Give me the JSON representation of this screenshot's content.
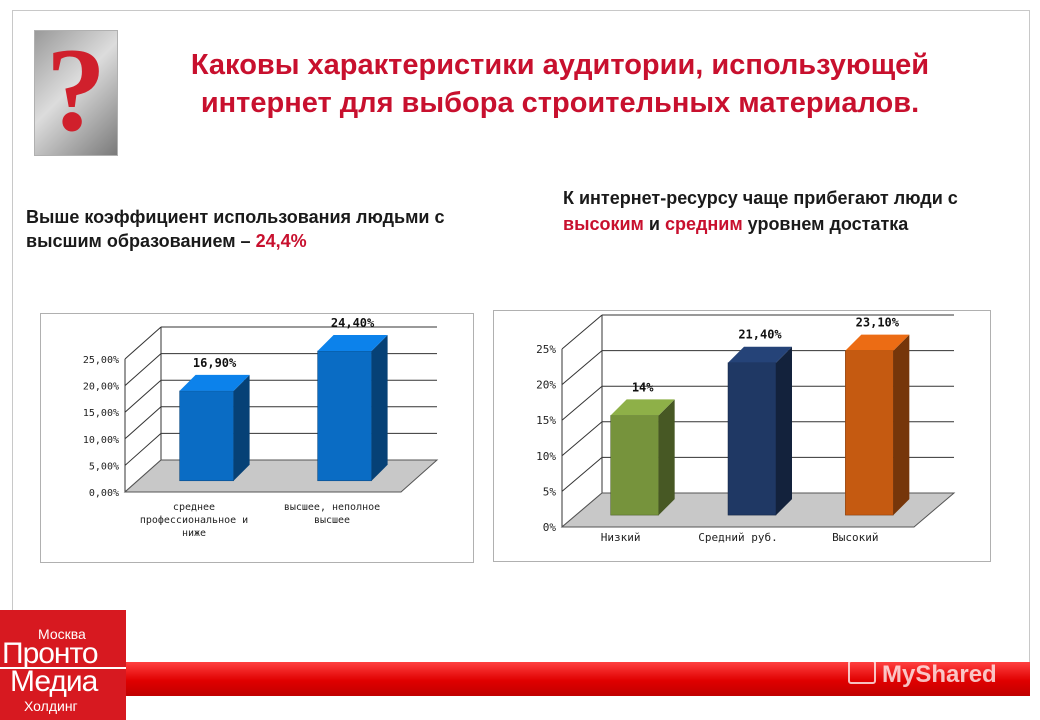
{
  "title": "Каковы характеристики аудитории, использующей интернет для выбора строительных материалов.",
  "left_text": {
    "main": "Выше коэффициент использования людьми с высшим образованием –",
    "highlight": "24,4%"
  },
  "right_text": {
    "part1": "К интернет-ресурсу чаще прибегают люди с",
    "high": "высоким",
    "and": "и",
    "mid": "средним",
    "part2": "уровнем достатка"
  },
  "logo": {
    "line1": "Москва",
    "line2": "Пронто",
    "line3": "Медиа",
    "line4": "Холдинг"
  },
  "watermark": "MyShared",
  "colors": {
    "title_red": "#c8102e",
    "logo_red": "#d71920"
  },
  "chart_data": [
    {
      "type": "bar",
      "categories": [
        "среднее профессиональное и ниже",
        "высшее, неполное высшее"
      ],
      "values": [
        16.9,
        24.4
      ],
      "data_labels": [
        "16,90%",
        "24,40%"
      ],
      "ylim": [
        0,
        25
      ],
      "ytick_labels": [
        "0,00%",
        "5,00%",
        "10,00%",
        "15,00%",
        "20,00%",
        "25,00%"
      ],
      "colors": [
        "#0a6cc4",
        "#0a6cc4"
      ],
      "grid": true,
      "style": "3d"
    },
    {
      "type": "bar",
      "categories": [
        "Низкий",
        "Средний руб.",
        "Высокий"
      ],
      "values": [
        14,
        21.4,
        23.1
      ],
      "data_labels": [
        "14%",
        "21,40%",
        "23,10%"
      ],
      "ylim": [
        0,
        25
      ],
      "ytick_labels": [
        "0%",
        "5%",
        "10%",
        "15%",
        "20%",
        "25%"
      ],
      "colors": [
        "#76933c",
        "#1f3864",
        "#c55a11"
      ],
      "grid": true,
      "style": "3d"
    }
  ]
}
